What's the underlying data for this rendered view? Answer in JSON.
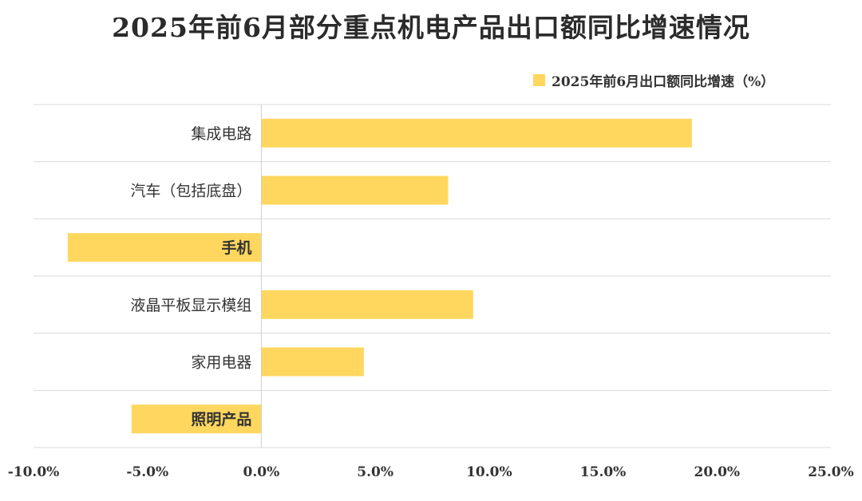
{
  "title": "2025年前6月部分重点机电产品出口额同比增速情况",
  "legend": {
    "label": "2025年前6月出口额同比增速（%）",
    "color": "#FFD75E"
  },
  "chart_data": {
    "type": "bar",
    "orientation": "horizontal",
    "title": "2025年前6月部分重点机电产品出口额同比增速情况",
    "categories": [
      "集成电路",
      "汽车（包括底盘）",
      "手机",
      "液晶平板显示模组",
      "家用电器",
      "照明产品"
    ],
    "series": [
      {
        "name": "2025年前6月出口额同比增速（%）",
        "values": [
          18.9,
          8.2,
          -8.5,
          9.3,
          4.5,
          -5.7
        ],
        "color": "#FFD75E"
      }
    ],
    "xlim": [
      -10,
      25
    ],
    "xticks": [
      -10,
      -5,
      0,
      5,
      10,
      15,
      20,
      25
    ],
    "xtick_labels": [
      "-10.0%",
      "-5.0%",
      "0.0%",
      "5.0%",
      "10.0%",
      "15.0%",
      "20.0%",
      "25.0%"
    ],
    "grid": "horizontal",
    "legend_position": "top-right",
    "xlabel": "",
    "ylabel": ""
  }
}
